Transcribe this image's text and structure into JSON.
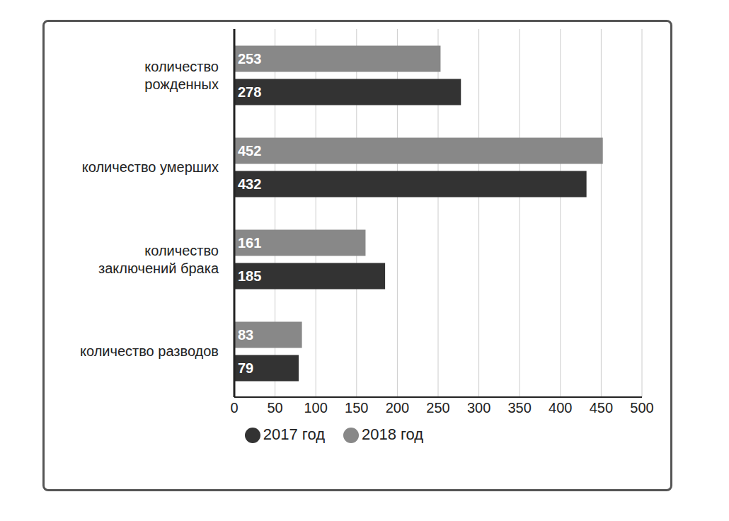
{
  "chart_data": {
    "type": "bar",
    "orientation": "horizontal",
    "categories": [
      "количество рожденных",
      "количество умерших",
      "количество заключений брака",
      "количество разводов"
    ],
    "series": [
      {
        "name": "2018 год",
        "color": "#888888",
        "values": [
          253,
          452,
          161,
          83
        ]
      },
      {
        "name": "2017 год",
        "color": "#333333",
        "values": [
          278,
          432,
          185,
          79
        ]
      }
    ],
    "xlim": [
      0,
      500
    ],
    "xticks": [
      0,
      50,
      100,
      150,
      200,
      250,
      300,
      350,
      400,
      450,
      500
    ],
    "grid": true,
    "data_labels": true,
    "legend": "bottom"
  }
}
